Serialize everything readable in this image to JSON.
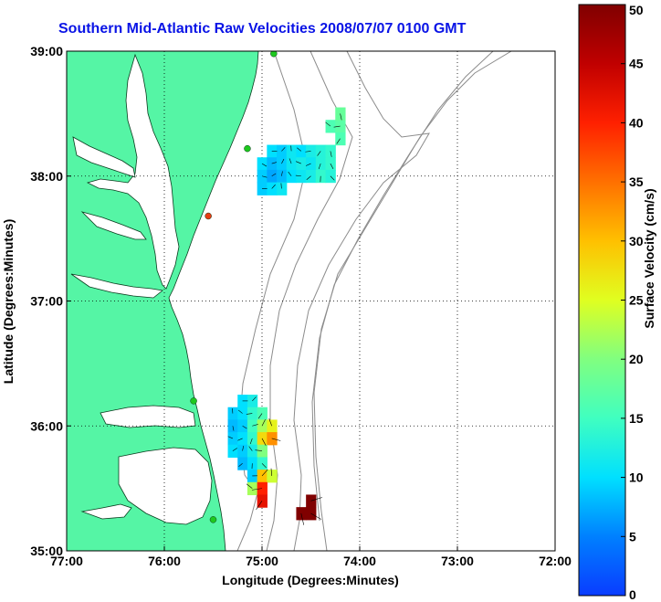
{
  "title": "Southern Mid-Atlantic Raw Velocities 2008/07/07 0100 GMT",
  "map": {
    "xlabel": "Longitude (Degrees:Minutes)",
    "ylabel": "Latitude (Degrees:Minutes)",
    "lon_range": [
      -77,
      -72
    ],
    "lat_range": [
      35,
      39
    ],
    "x_ticks": [
      {
        "value": -77,
        "label": "77:00"
      },
      {
        "value": -76,
        "label": "76:00"
      },
      {
        "value": -75,
        "label": "75:00"
      },
      {
        "value": -74,
        "label": "74:00"
      },
      {
        "value": -73,
        "label": "73:00"
      },
      {
        "value": -72,
        "label": "72:00"
      }
    ],
    "y_ticks": [
      {
        "value": 39,
        "label": "39:00"
      },
      {
        "value": 38,
        "label": "38:00"
      },
      {
        "value": 37,
        "label": "37:00"
      },
      {
        "value": 36,
        "label": "36:00"
      },
      {
        "value": 35,
        "label": "35:00"
      }
    ],
    "grid": "dotted",
    "land_color": "#55f5a5",
    "water_color": "#ffffff",
    "bathymetry_color": "#8c8c8c",
    "stations": [
      {
        "lon": -74.88,
        "lat": 38.98,
        "color": "#1ec81e"
      },
      {
        "lon": -75.15,
        "lat": 38.22,
        "color": "#1ec81e"
      },
      {
        "lon": -75.55,
        "lat": 37.68,
        "color": "#e63c14"
      },
      {
        "lon": -75.7,
        "lat": 36.2,
        "color": "#1ec81e"
      },
      {
        "lon": -75.5,
        "lat": 35.25,
        "color": "#1ec81e"
      }
    ]
  },
  "colorbar": {
    "label": "Surface Velocity (cm/s)",
    "min": 0,
    "max": 50,
    "ticks": [
      {
        "value": 0,
        "label": "0"
      },
      {
        "value": 5,
        "label": "5"
      },
      {
        "value": 10,
        "label": "10"
      },
      {
        "value": 15,
        "label": "15"
      },
      {
        "value": 20,
        "label": "20"
      },
      {
        "value": 25,
        "label": "25"
      },
      {
        "value": 30,
        "label": "30"
      },
      {
        "value": 35,
        "label": "35"
      },
      {
        "value": 40,
        "label": "40"
      },
      {
        "value": 45,
        "label": "45"
      },
      {
        "value": 50,
        "label": "50"
      }
    ]
  },
  "velocity_fields": [
    {
      "name": "north",
      "cells": [
        {
          "lon": -74.9,
          "lat": 38.2,
          "speed": 10
        },
        {
          "lon": -74.8,
          "lat": 38.2,
          "speed": 9
        },
        {
          "lon": -74.7,
          "lat": 38.2,
          "speed": 11
        },
        {
          "lon": -74.6,
          "lat": 38.2,
          "speed": 10
        },
        {
          "lon": -74.5,
          "lat": 38.2,
          "speed": 12
        },
        {
          "lon": -74.4,
          "lat": 38.2,
          "speed": 13
        },
        {
          "lon": -74.3,
          "lat": 38.2,
          "speed": 14
        },
        {
          "lon": -75.0,
          "lat": 38.1,
          "speed": 10
        },
        {
          "lon": -74.9,
          "lat": 38.1,
          "speed": 8
        },
        {
          "lon": -74.8,
          "lat": 38.1,
          "speed": 9
        },
        {
          "lon": -74.7,
          "lat": 38.1,
          "speed": 11
        },
        {
          "lon": -74.6,
          "lat": 38.1,
          "speed": 12
        },
        {
          "lon": -74.5,
          "lat": 38.1,
          "speed": 11
        },
        {
          "lon": -74.4,
          "lat": 38.1,
          "speed": 13
        },
        {
          "lon": -74.3,
          "lat": 38.1,
          "speed": 14
        },
        {
          "lon": -75.0,
          "lat": 38.0,
          "speed": 9
        },
        {
          "lon": -74.9,
          "lat": 38.0,
          "speed": 7
        },
        {
          "lon": -74.8,
          "lat": 38.0,
          "speed": 8
        },
        {
          "lon": -74.7,
          "lat": 38.0,
          "speed": 10
        },
        {
          "lon": -74.6,
          "lat": 38.0,
          "speed": 11
        },
        {
          "lon": -74.5,
          "lat": 38.0,
          "speed": 12
        },
        {
          "lon": -74.4,
          "lat": 38.0,
          "speed": 14
        },
        {
          "lon": -74.3,
          "lat": 38.0,
          "speed": 13
        },
        {
          "lon": -75.0,
          "lat": 37.9,
          "speed": 9
        },
        {
          "lon": -74.9,
          "lat": 37.9,
          "speed": 10
        },
        {
          "lon": -74.8,
          "lat": 37.9,
          "speed": 11
        },
        {
          "lon": -74.3,
          "lat": 38.4,
          "speed": 16
        },
        {
          "lon": -74.2,
          "lat": 38.4,
          "speed": 17
        },
        {
          "lon": -74.2,
          "lat": 38.3,
          "speed": 16
        },
        {
          "lon": -74.2,
          "lat": 38.5,
          "speed": 18
        }
      ]
    },
    {
      "name": "south",
      "cells": [
        {
          "lon": -75.2,
          "lat": 36.2,
          "speed": 10
        },
        {
          "lon": -75.1,
          "lat": 36.2,
          "speed": 12
        },
        {
          "lon": -75.3,
          "lat": 36.1,
          "speed": 9
        },
        {
          "lon": -75.2,
          "lat": 36.1,
          "speed": 10
        },
        {
          "lon": -75.1,
          "lat": 36.1,
          "speed": 14
        },
        {
          "lon": -75.0,
          "lat": 36.1,
          "speed": 16
        },
        {
          "lon": -75.3,
          "lat": 36.0,
          "speed": 8
        },
        {
          "lon": -75.2,
          "lat": 36.0,
          "speed": 9
        },
        {
          "lon": -75.1,
          "lat": 36.0,
          "speed": 15
        },
        {
          "lon": -75.0,
          "lat": 36.0,
          "speed": 22
        },
        {
          "lon": -74.9,
          "lat": 36.0,
          "speed": 26
        },
        {
          "lon": -75.3,
          "lat": 35.9,
          "speed": 9
        },
        {
          "lon": -75.2,
          "lat": 35.9,
          "speed": 10
        },
        {
          "lon": -75.1,
          "lat": 35.9,
          "speed": 14
        },
        {
          "lon": -75.0,
          "lat": 35.9,
          "speed": 28
        },
        {
          "lon": -74.9,
          "lat": 35.9,
          "speed": 33
        },
        {
          "lon": -75.3,
          "lat": 35.8,
          "speed": 10
        },
        {
          "lon": -75.2,
          "lat": 35.8,
          "speed": 9
        },
        {
          "lon": -75.1,
          "lat": 35.8,
          "speed": 12
        },
        {
          "lon": -75.0,
          "lat": 35.8,
          "speed": 20
        },
        {
          "lon": -75.2,
          "lat": 35.7,
          "speed": 8
        },
        {
          "lon": -75.1,
          "lat": 35.7,
          "speed": 10
        },
        {
          "lon": -75.0,
          "lat": 35.7,
          "speed": 14
        },
        {
          "lon": -75.1,
          "lat": 35.6,
          "speed": 9
        },
        {
          "lon": -75.0,
          "lat": 35.6,
          "speed": 30
        },
        {
          "lon": -74.9,
          "lat": 35.6,
          "speed": 24
        },
        {
          "lon": -75.1,
          "lat": 35.5,
          "speed": 22
        },
        {
          "lon": -75.0,
          "lat": 35.5,
          "speed": 40
        },
        {
          "lon": -75.0,
          "lat": 35.4,
          "speed": 42
        },
        {
          "lon": -74.6,
          "lat": 35.3,
          "speed": 50
        },
        {
          "lon": -74.5,
          "lat": 35.3,
          "speed": 50
        },
        {
          "lon": -74.5,
          "lat": 35.4,
          "speed": 50
        }
      ]
    }
  ]
}
